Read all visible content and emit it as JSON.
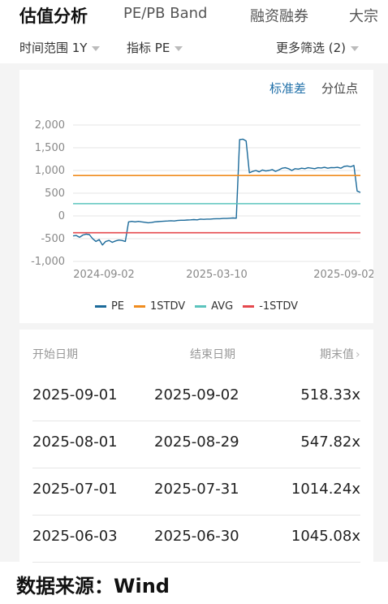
{
  "tabs": [
    "估值分析",
    "PE/PB Band",
    "融资融券",
    "大宗"
  ],
  "filters": {
    "time_range": "时间范围 1Y",
    "indicator": "指标 PE",
    "more": "更多筛选 (2)"
  },
  "chart_toggle": [
    "标准差",
    "分位点"
  ],
  "chart_data": {
    "type": "line",
    "y_ticks": [
      "2,000",
      "1,500",
      "1,000",
      "500",
      "0",
      "-500",
      "-1,000"
    ],
    "ylim": [
      -1000,
      2000
    ],
    "x_ticks": [
      "2024-09-02",
      "2025-03-10",
      "2025-09-02"
    ],
    "series": [
      {
        "name": "PE",
        "color": "#1b6a9a",
        "values": [
          -440,
          -430,
          -470,
          -420,
          -400,
          -410,
          -500,
          -560,
          -520,
          -640,
          -560,
          -540,
          -580,
          -550,
          -530,
          -540,
          -560,
          -130,
          -120,
          -130,
          -120,
          -130,
          -140,
          -150,
          -145,
          -130,
          -125,
          -120,
          -115,
          -110,
          -105,
          -110,
          -100,
          -95,
          -95,
          -90,
          -85,
          -80,
          -85,
          -70,
          -75,
          -70,
          -70,
          -65,
          -60,
          -60,
          -55,
          -55,
          -50,
          -45,
          -50,
          1680,
          1690,
          1650,
          950,
          980,
          1000,
          970,
          1010,
          990,
          1000,
          1020,
          980,
          1010,
          1050,
          1060,
          1040,
          1000,
          1040,
          1030,
          1050,
          1040,
          1060,
          1050,
          1040,
          1060,
          1055,
          1070,
          1050,
          1065,
          1060,
          1070,
          1050,
          1090,
          1100,
          1080,
          1110,
          547.82,
          518.33
        ]
      },
      {
        "name": "1STDV",
        "color": "#f08c1e",
        "values": [
          890
        ]
      },
      {
        "name": "AVG",
        "color": "#5bc4bd",
        "values": [
          270
        ]
      },
      {
        "name": "-1STDV",
        "color": "#e5484d",
        "values": [
          -370
        ]
      }
    ]
  },
  "table": {
    "headers": [
      "开始日期",
      "结束日期",
      "期末值"
    ],
    "rows": [
      [
        "2025-09-01",
        "2025-09-02",
        "518.33x"
      ],
      [
        "2025-08-01",
        "2025-08-29",
        "547.82x"
      ],
      [
        "2025-07-01",
        "2025-07-31",
        "1014.24x"
      ],
      [
        "2025-06-03",
        "2025-06-30",
        "1045.08x"
      ]
    ]
  },
  "source": "数据来源：Wind",
  "icons": {
    "caret": "caret-down-icon",
    "chevron": "chevron-right-icon"
  }
}
